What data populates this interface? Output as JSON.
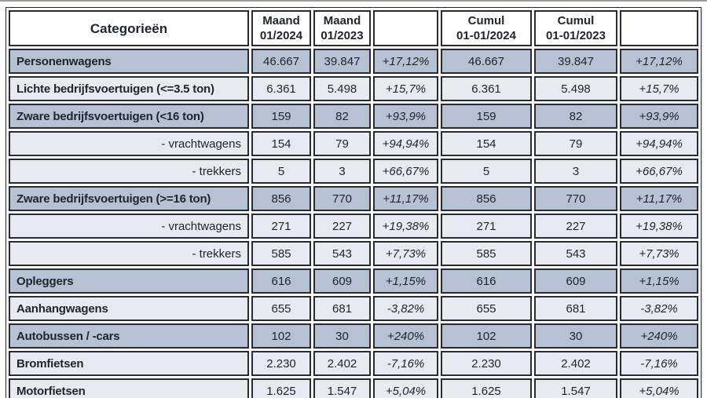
{
  "colors": {
    "border": "#282b33",
    "row-dark": "#b6c2d3",
    "row-light": "#e8eaf1",
    "header-bg": "#ffffff",
    "text": "#21252e",
    "top-rule": "#9e9e9e"
  },
  "chart_data": {
    "type": "table",
    "title": "",
    "columns": [
      {
        "id": "categorieen",
        "line1": "Categorieën",
        "line2": ""
      },
      {
        "id": "maand-2024",
        "line1": "Maand",
        "line2": "01/2024"
      },
      {
        "id": "maand-2023",
        "line1": "Maand",
        "line2": "01/2023"
      },
      {
        "id": "pct-maand",
        "line1": "",
        "line2": ""
      },
      {
        "id": "cumul-2024",
        "line1": "Cumul",
        "line2": "01-01/2024"
      },
      {
        "id": "cumul-2023",
        "line1": "Cumul",
        "line2": "01-01/2023"
      },
      {
        "id": "pct-cumul",
        "line1": "",
        "line2": ""
      }
    ],
    "rows": [
      {
        "label": "Personenwagens",
        "sub": false,
        "shade": "dark",
        "values": [
          "46.667",
          "39.847",
          "+17,12%",
          "46.667",
          "39.847",
          "+17,12%"
        ]
      },
      {
        "label": "Lichte bedrijfsvoertuigen (<=3.5 ton)",
        "sub": false,
        "shade": "light",
        "values": [
          "6.361",
          "5.498",
          "+15,7%",
          "6.361",
          "5.498",
          "+15,7%"
        ]
      },
      {
        "label": "Zware bedrijfsvoertuigen (<16 ton)",
        "sub": false,
        "shade": "dark",
        "values": [
          "159",
          "82",
          "+93,9%",
          "159",
          "82",
          "+93,9%"
        ]
      },
      {
        "label": "- vrachtwagens",
        "sub": true,
        "shade": "light",
        "values": [
          "154",
          "79",
          "+94,94%",
          "154",
          "79",
          "+94,94%"
        ]
      },
      {
        "label": "- trekkers",
        "sub": true,
        "shade": "light",
        "values": [
          "5",
          "3",
          "+66,67%",
          "5",
          "3",
          "+66,67%"
        ]
      },
      {
        "label": "Zware bedrijfsvoertuigen (>=16 ton)",
        "sub": false,
        "shade": "dark",
        "values": [
          "856",
          "770",
          "+11,17%",
          "856",
          "770",
          "+11,17%"
        ]
      },
      {
        "label": "- vrachtwagens",
        "sub": true,
        "shade": "light",
        "values": [
          "271",
          "227",
          "+19,38%",
          "271",
          "227",
          "+19,38%"
        ]
      },
      {
        "label": "- trekkers",
        "sub": true,
        "shade": "light",
        "values": [
          "585",
          "543",
          "+7,73%",
          "585",
          "543",
          "+7,73%"
        ]
      },
      {
        "label": "Opleggers",
        "sub": false,
        "shade": "dark",
        "values": [
          "616",
          "609",
          "+1,15%",
          "616",
          "609",
          "+1,15%"
        ]
      },
      {
        "label": "Aanhangwagens",
        "sub": false,
        "shade": "light",
        "values": [
          "655",
          "681",
          "-3,82%",
          "655",
          "681",
          "-3,82%"
        ]
      },
      {
        "label": "Autobussen / -cars",
        "sub": false,
        "shade": "dark",
        "values": [
          "102",
          "30",
          "+240%",
          "102",
          "30",
          "+240%"
        ]
      },
      {
        "label": "Bromfietsen",
        "sub": false,
        "shade": "light",
        "values": [
          "2.230",
          "2.402",
          "-7,16%",
          "2.230",
          "2.402",
          "-7,16%"
        ]
      },
      {
        "label": "Motorfietsen",
        "sub": false,
        "shade": "light",
        "values": [
          "1.625",
          "1.547",
          "+5,04%",
          "1.625",
          "1.547",
          "+5,04%"
        ]
      }
    ]
  }
}
